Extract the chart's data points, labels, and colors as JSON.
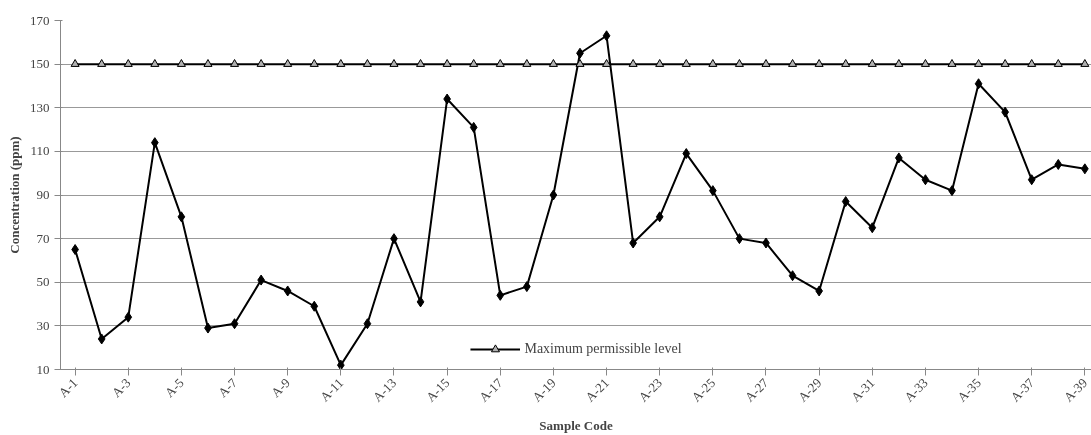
{
  "chart_data": {
    "type": "line",
    "xlabel": "Sample Code",
    "ylabel": "Concentration (ppm)",
    "categories": [
      "A-1",
      null,
      "A-3",
      null,
      "A-5",
      null,
      "A-7",
      null,
      "A-9",
      null,
      "A-11",
      null,
      "A-13",
      null,
      "A-15",
      null,
      "A-17",
      null,
      "A-19",
      null,
      "A-21",
      null,
      "A-23",
      null,
      "A-25",
      null,
      "A-27",
      null,
      "A-29",
      null,
      "A-31",
      null,
      "A-33",
      null,
      "A-35",
      null,
      "A-37",
      null,
      "A-39"
    ],
    "series": [
      {
        "color": "#000000",
        "marker": "diamond",
        "values": [
          65,
          24,
          34,
          114,
          80,
          29,
          31,
          51,
          46,
          39,
          12,
          31,
          70,
          41,
          134,
          121,
          44,
          48,
          90,
          155,
          163,
          68,
          80,
          109,
          92,
          70,
          68,
          53,
          46,
          87,
          75,
          107,
          97,
          92,
          141,
          128,
          97,
          104,
          102
        ]
      },
      {
        "name": "Maximum permissible level",
        "color": "#000000",
        "marker": "triangle",
        "values": [
          150,
          150,
          150,
          150,
          150,
          150,
          150,
          150,
          150,
          150,
          150,
          150,
          150,
          150,
          150,
          150,
          150,
          150,
          150,
          150,
          150,
          150,
          150,
          150,
          150,
          150,
          150,
          150,
          150,
          150,
          150,
          150,
          150,
          150,
          150,
          150,
          150,
          150,
          150
        ]
      }
    ],
    "ylim": [
      10,
      170
    ],
    "yticks": [
      10,
      30,
      50,
      70,
      90,
      110,
      130,
      150,
      170
    ],
    "grid": "y",
    "legend": "bottom",
    "line_style": "solid"
  }
}
